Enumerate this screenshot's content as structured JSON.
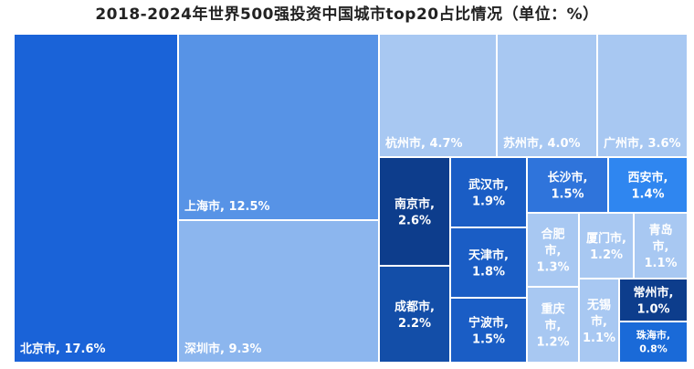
{
  "title": "2018-2024年世界500强投资中国城市top20占比情况（单位：%）",
  "chart_data": {
    "type": "treemap",
    "title": "2018-2024年世界500强投资中国城市top20占比情况（单位：%）",
    "unit": "%",
    "items": [
      {
        "name": "北京市",
        "value": 17.6,
        "color": "#1a63d8"
      },
      {
        "name": "上海市",
        "value": 12.5,
        "color": "#5793e6"
      },
      {
        "name": "深圳市",
        "value": 9.3,
        "color": "#8cb6ee"
      },
      {
        "name": "杭州市",
        "value": 4.7,
        "color": "#a8c8f2"
      },
      {
        "name": "苏州市",
        "value": 4.0,
        "color": "#a8c8f2"
      },
      {
        "name": "广州市",
        "value": 3.6,
        "color": "#a8c8f2"
      },
      {
        "name": "南京市",
        "value": 2.6,
        "color": "#0d3d8c"
      },
      {
        "name": "成都市",
        "value": 2.2,
        "color": "#134ea8"
      },
      {
        "name": "武汉市",
        "value": 1.9,
        "color": "#1a5dc5"
      },
      {
        "name": "天津市",
        "value": 1.8,
        "color": "#1a5dc5"
      },
      {
        "name": "宁波市",
        "value": 1.5,
        "color": "#1a5dc5"
      },
      {
        "name": "长沙市",
        "value": 1.5,
        "color": "#2f74db"
      },
      {
        "name": "西安市",
        "value": 1.4,
        "color": "#2f86f0"
      },
      {
        "name": "合肥市",
        "value": 1.3,
        "color": "#a8c8f2"
      },
      {
        "name": "重庆市",
        "value": 1.2,
        "color": "#a8c8f2"
      },
      {
        "name": "厦门市",
        "value": 1.2,
        "color": "#a8c8f2"
      },
      {
        "name": "青岛市",
        "value": 1.1,
        "color": "#a8c8f2"
      },
      {
        "name": "无锡市",
        "value": 1.1,
        "color": "#a8c8f2"
      },
      {
        "name": "常州市",
        "value": 1.0,
        "color": "#0d3d8c"
      },
      {
        "name": "珠海市",
        "value": 0.8,
        "color": "#1a6ad8"
      }
    ]
  }
}
